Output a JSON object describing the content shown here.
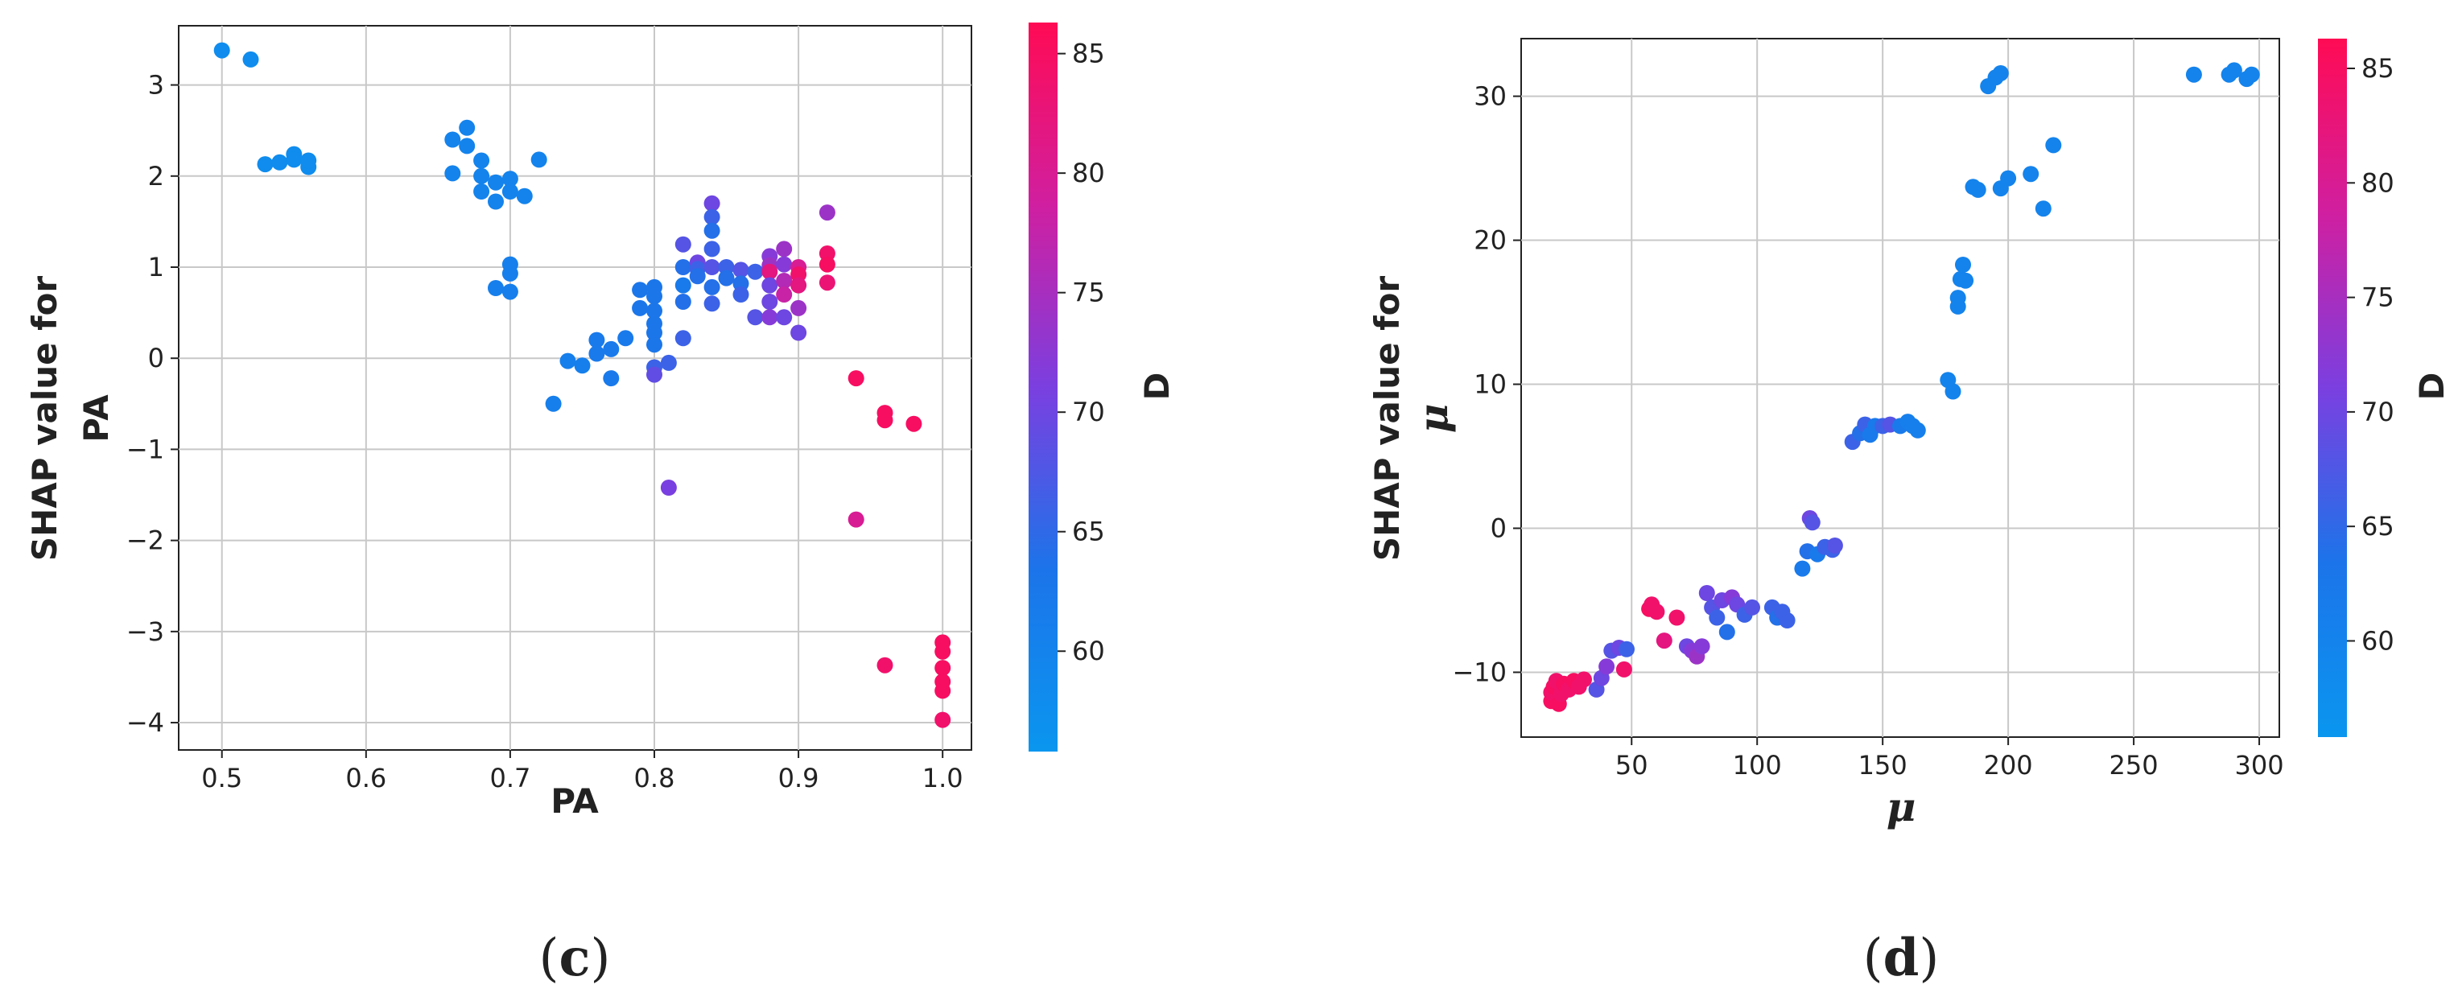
{
  "colorbar": {
    "label": "D",
    "min": 55.8,
    "max": 86.3,
    "ticks": [
      60,
      65,
      70,
      75,
      80,
      85
    ],
    "low_color": "#0a96ef",
    "mid_color": "#7b3fe0",
    "high_color": "#ff0b54"
  },
  "panels": [
    {
      "id": "c",
      "caption_open": "(",
      "caption_letter": "c",
      "caption_close": ")"
    },
    {
      "id": "d",
      "caption_open": "(",
      "caption_letter": "d",
      "caption_close": ")"
    }
  ],
  "chart_data": [
    {
      "type": "scatter",
      "title": "",
      "xlabel": "PA",
      "ylabel_line1": "SHAP value for",
      "ylabel_line2": "PA",
      "color_label": "D",
      "xlim": [
        0.47,
        1.02
      ],
      "ylim": [
        -4.3,
        3.65
      ],
      "xticks": [
        0.5,
        0.6,
        0.7,
        0.8,
        0.9,
        1.0
      ],
      "xtick_labels": [
        "0.5",
        "0.6",
        "0.7",
        "0.8",
        "0.9",
        "1.0"
      ],
      "yticks": [
        -4,
        -3,
        -2,
        -1,
        0,
        1,
        2,
        3
      ],
      "ytick_labels": [
        "−4",
        "−3",
        "−2",
        "−1",
        "0",
        "1",
        "2",
        "3"
      ],
      "grid": true,
      "points": [
        [
          0.5,
          3.38,
          58
        ],
        [
          0.52,
          3.28,
          58
        ],
        [
          0.53,
          2.13,
          58
        ],
        [
          0.54,
          2.15,
          58
        ],
        [
          0.55,
          2.24,
          58
        ],
        [
          0.55,
          2.18,
          58
        ],
        [
          0.56,
          2.1,
          58
        ],
        [
          0.56,
          2.17,
          58
        ],
        [
          0.66,
          2.4,
          60
        ],
        [
          0.66,
          2.03,
          60
        ],
        [
          0.67,
          2.53,
          60
        ],
        [
          0.67,
          2.33,
          60
        ],
        [
          0.68,
          2.17,
          60
        ],
        [
          0.68,
          2.0,
          60
        ],
        [
          0.68,
          1.83,
          60
        ],
        [
          0.69,
          1.93,
          60
        ],
        [
          0.69,
          1.72,
          60
        ],
        [
          0.7,
          1.97,
          60
        ],
        [
          0.7,
          1.83,
          60
        ],
        [
          0.71,
          1.78,
          60
        ],
        [
          0.72,
          2.18,
          60
        ],
        [
          0.69,
          0.77,
          61
        ],
        [
          0.7,
          1.03,
          61
        ],
        [
          0.7,
          0.93,
          61
        ],
        [
          0.7,
          0.73,
          61
        ],
        [
          0.73,
          -0.5,
          61
        ],
        [
          0.74,
          -0.03,
          61
        ],
        [
          0.75,
          -0.08,
          61
        ],
        [
          0.76,
          0.2,
          62
        ],
        [
          0.76,
          0.05,
          62
        ],
        [
          0.77,
          0.1,
          62
        ],
        [
          0.77,
          -0.22,
          62
        ],
        [
          0.78,
          0.22,
          62
        ],
        [
          0.79,
          0.75,
          63
        ],
        [
          0.79,
          0.55,
          63
        ],
        [
          0.8,
          0.78,
          63
        ],
        [
          0.8,
          0.68,
          63
        ],
        [
          0.8,
          0.52,
          63
        ],
        [
          0.8,
          0.38,
          63
        ],
        [
          0.8,
          0.28,
          63
        ],
        [
          0.8,
          0.15,
          63
        ],
        [
          0.8,
          -0.1,
          66
        ],
        [
          0.8,
          -0.18,
          69
        ],
        [
          0.81,
          -0.05,
          66
        ],
        [
          0.81,
          -1.42,
          71
        ],
        [
          0.82,
          1.25,
          68
        ],
        [
          0.82,
          1.0,
          64
        ],
        [
          0.82,
          0.8,
          62
        ],
        [
          0.82,
          0.62,
          64
        ],
        [
          0.82,
          0.22,
          66
        ],
        [
          0.83,
          1.05,
          70
        ],
        [
          0.83,
          0.98,
          66
        ],
        [
          0.83,
          0.9,
          64
        ],
        [
          0.84,
          1.7,
          70
        ],
        [
          0.84,
          1.55,
          66
        ],
        [
          0.84,
          1.4,
          64
        ],
        [
          0.84,
          1.2,
          66
        ],
        [
          0.84,
          1.0,
          68
        ],
        [
          0.84,
          0.78,
          64
        ],
        [
          0.84,
          0.6,
          66
        ],
        [
          0.85,
          1.0,
          66
        ],
        [
          0.85,
          0.88,
          64
        ],
        [
          0.86,
          0.97,
          68
        ],
        [
          0.86,
          0.82,
          64
        ],
        [
          0.86,
          0.7,
          66
        ],
        [
          0.87,
          0.45,
          68
        ],
        [
          0.87,
          0.95,
          66
        ],
        [
          0.88,
          1.12,
          72
        ],
        [
          0.88,
          1.02,
          74
        ],
        [
          0.88,
          0.95,
          82
        ],
        [
          0.88,
          0.8,
          70
        ],
        [
          0.88,
          0.62,
          70
        ],
        [
          0.88,
          0.45,
          72
        ],
        [
          0.89,
          1.2,
          74
        ],
        [
          0.89,
          1.03,
          72
        ],
        [
          0.89,
          0.85,
          76
        ],
        [
          0.89,
          0.7,
          78
        ],
        [
          0.89,
          0.45,
          70
        ],
        [
          0.9,
          1.0,
          80
        ],
        [
          0.9,
          0.92,
          84
        ],
        [
          0.9,
          0.8,
          82
        ],
        [
          0.9,
          0.55,
          74
        ],
        [
          0.9,
          0.28,
          70
        ],
        [
          0.92,
          1.6,
          74
        ],
        [
          0.92,
          1.15,
          84
        ],
        [
          0.92,
          1.03,
          85
        ],
        [
          0.92,
          0.83,
          83
        ],
        [
          0.94,
          -0.22,
          85
        ],
        [
          0.94,
          -1.77,
          80
        ],
        [
          0.96,
          -0.6,
          85
        ],
        [
          0.96,
          -0.68,
          85
        ],
        [
          0.96,
          -3.37,
          84
        ],
        [
          0.98,
          -0.72,
          85
        ],
        [
          1.0,
          -3.12,
          85
        ],
        [
          1.0,
          -3.22,
          85
        ],
        [
          1.0,
          -3.4,
          85
        ],
        [
          1.0,
          -3.55,
          85
        ],
        [
          1.0,
          -3.65,
          85
        ],
        [
          1.0,
          -3.97,
          84
        ]
      ]
    },
    {
      "type": "scatter",
      "title": "",
      "xlabel": "μ",
      "ylabel_line1": "SHAP value for",
      "ylabel_line2": "μ",
      "color_label": "D",
      "xlim": [
        6,
        308
      ],
      "ylim": [
        -14.5,
        34
      ],
      "xticks": [
        50,
        100,
        150,
        200,
        250,
        300
      ],
      "xtick_labels": [
        "50",
        "100",
        "150",
        "200",
        "250",
        "300"
      ],
      "yticks": [
        -10,
        0,
        10,
        20,
        30
      ],
      "ytick_labels": [
        "−10",
        "0",
        "10",
        "20",
        "30"
      ],
      "grid": true,
      "points": [
        [
          18,
          -12.0,
          85
        ],
        [
          18,
          -11.4,
          84
        ],
        [
          19,
          -11.0,
          85
        ],
        [
          20,
          -10.6,
          84
        ],
        [
          21,
          -12.2,
          85
        ],
        [
          22,
          -11.5,
          84
        ],
        [
          23,
          -10.8,
          85
        ],
        [
          25,
          -11.2,
          84
        ],
        [
          27,
          -10.6,
          85
        ],
        [
          29,
          -11.0,
          84
        ],
        [
          31,
          -10.5,
          84
        ],
        [
          36,
          -11.2,
          68
        ],
        [
          38,
          -10.4,
          70
        ],
        [
          40,
          -9.6,
          72
        ],
        [
          42,
          -8.5,
          68
        ],
        [
          45,
          -8.3,
          70
        ],
        [
          47,
          -9.8,
          84
        ],
        [
          48,
          -8.4,
          66
        ],
        [
          57,
          -5.6,
          85
        ],
        [
          58,
          -5.3,
          84
        ],
        [
          60,
          -5.8,
          84
        ],
        [
          63,
          -7.8,
          82
        ],
        [
          68,
          -6.2,
          84
        ],
        [
          72,
          -8.2,
          70
        ],
        [
          74,
          -8.5,
          72
        ],
        [
          76,
          -8.9,
          74
        ],
        [
          78,
          -8.2,
          72
        ],
        [
          80,
          -4.5,
          70
        ],
        [
          82,
          -5.5,
          68
        ],
        [
          84,
          -6.2,
          66
        ],
        [
          86,
          -5.0,
          70
        ],
        [
          88,
          -7.2,
          64
        ],
        [
          90,
          -4.8,
          72
        ],
        [
          92,
          -5.3,
          70
        ],
        [
          95,
          -6.0,
          66
        ],
        [
          98,
          -5.5,
          68
        ],
        [
          106,
          -5.5,
          66
        ],
        [
          108,
          -6.2,
          64
        ],
        [
          110,
          -5.8,
          66
        ],
        [
          112,
          -6.4,
          66
        ],
        [
          118,
          -2.8,
          62
        ],
        [
          120,
          -1.6,
          64
        ],
        [
          121,
          0.7,
          70
        ],
        [
          122,
          0.4,
          68
        ],
        [
          124,
          -1.8,
          62
        ],
        [
          127,
          -1.3,
          66
        ],
        [
          130,
          -1.5,
          66
        ],
        [
          131,
          -1.2,
          68
        ],
        [
          138,
          6.0,
          66
        ],
        [
          141,
          6.6,
          64
        ],
        [
          143,
          7.2,
          66
        ],
        [
          145,
          6.5,
          62
        ],
        [
          147,
          7.1,
          62
        ],
        [
          150,
          7.1,
          66
        ],
        [
          153,
          7.2,
          68
        ],
        [
          157,
          7.1,
          62
        ],
        [
          160,
          7.4,
          61
        ],
        [
          162,
          7.1,
          61
        ],
        [
          164,
          6.8,
          61
        ],
        [
          176,
          10.3,
          60
        ],
        [
          178,
          9.5,
          60
        ],
        [
          180,
          15.4,
          60
        ],
        [
          180,
          16.0,
          60
        ],
        [
          181,
          17.3,
          60
        ],
        [
          182,
          18.3,
          60
        ],
        [
          183,
          17.2,
          60
        ],
        [
          186,
          23.7,
          60
        ],
        [
          188,
          23.5,
          60
        ],
        [
          192,
          30.7,
          60
        ],
        [
          195,
          31.3,
          60
        ],
        [
          197,
          31.6,
          60
        ],
        [
          197,
          23.6,
          60
        ],
        [
          200,
          24.3,
          60
        ],
        [
          209,
          24.6,
          60
        ],
        [
          214,
          22.2,
          60
        ],
        [
          218,
          26.6,
          60
        ],
        [
          274,
          31.5,
          60
        ],
        [
          288,
          31.5,
          60
        ],
        [
          290,
          31.8,
          60
        ],
        [
          295,
          31.2,
          60
        ],
        [
          297,
          31.5,
          60
        ]
      ]
    }
  ]
}
